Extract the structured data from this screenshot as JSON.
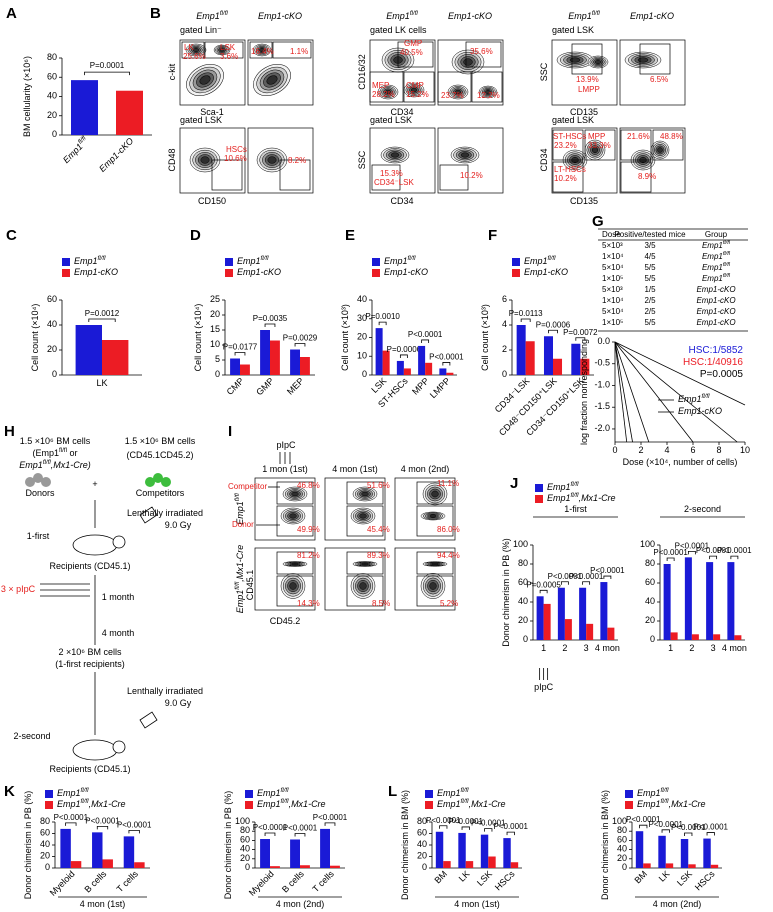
{
  "panel_labels": [
    "A",
    "B",
    "C",
    "D",
    "E",
    "F",
    "G",
    "H",
    "I",
    "J",
    "K",
    "L"
  ],
  "flow_b": {
    "headers": [
      "Emp1fl/fl",
      "Emp1-cKO",
      "Emp1fl/fl",
      "Emp1-cKO",
      "Emp1fl/fl",
      "Emp1-cKO"
    ],
    "gates": [
      "gated Lin⁻",
      "gated LK cells",
      "gated LSK",
      "gated LSK",
      "gated LSK",
      "gated LSK"
    ],
    "axes": [
      "c-kit",
      "Sca-1",
      "CD16/32",
      "CD34",
      "SSC",
      "CD135",
      "CD48",
      "CD150",
      "SSC",
      "CD34",
      "CD34",
      "CD135"
    ],
    "labels": [
      "LK",
      "LSK",
      "25.6%",
      "3.6%",
      "16.4%",
      "1.1%",
      "GMP",
      "40.5%",
      "MEP",
      "28.2%",
      "CMP",
      "15.2%",
      "35.6%",
      "23.7%",
      "12.2%",
      "13.9%",
      "LMPP",
      "6.5%",
      "HSCs",
      "10.6%",
      "8.2%",
      "15.3%",
      "CD34⁻LSK",
      "10.2%",
      "ST-HSCs",
      "MPP",
      "23.2%",
      "33.3%",
      "LT-HSCs",
      "10.2%",
      "21.6%",
      "48.8%",
      "8.9%"
    ]
  },
  "table_g": {
    "header": [
      "Dose",
      "Positive/tested mice",
      "Group"
    ],
    "rows": [
      [
        "5×10³",
        "3/5",
        "Emp1fl/fl"
      ],
      [
        "1×10⁴",
        "4/5",
        "Emp1fl/fl"
      ],
      [
        "5×10⁴",
        "5/5",
        "Emp1fl/fl"
      ],
      [
        "1×10⁵",
        "5/5",
        "Emp1fl/fl"
      ],
      [
        "5×10³",
        "1/5",
        "Emp1-cKO"
      ],
      [
        "1×10⁴",
        "2/5",
        "Emp1-cKO"
      ],
      [
        "5×10⁴",
        "2/5",
        "Emp1-cKO"
      ],
      [
        "1×10⁵",
        "5/5",
        "Emp1-cKO"
      ]
    ]
  },
  "schematic_h": {
    "texts": [
      "1.5 ×10⁶ BM cells",
      "(Emp1fl/fl or",
      "Emp1fl/fl,Mx1-Cre)",
      "1.5 ×10⁶ BM cells",
      "(CD45.1CD45.2)",
      "Donors",
      "+",
      "Competitors",
      "Lenthally irradiated",
      "9.0 Gy",
      "1-first",
      "Recipients (CD45.1)",
      "3 × pIpC",
      "1 month",
      "4 month",
      "2 ×10⁶ BM cells",
      "(1-first recipients)",
      "Lenthally irradiated",
      "9.0 Gy",
      "2-second",
      "Recipients (CD45.1)"
    ]
  },
  "flow_i": {
    "stimulus": "pIpC",
    "columns": [
      "1 mon (1st)",
      "4 mon (1st)",
      "4 mon (2nd)"
    ],
    "rows": [
      "Emp1fl/fl",
      "Emp1fl/fl,Mx1-Cre"
    ],
    "gates": [
      "Competitor",
      "Donor"
    ],
    "axes": [
      "CD45.1",
      "CD45.2"
    ],
    "labels": [
      "46.8%",
      "49.9%",
      "51.6%",
      "45.4%",
      "11.1%",
      "86.0%",
      "81.2%",
      "14.3%",
      "89.3%",
      "8.5%",
      "94.4%",
      "5.2%"
    ]
  },
  "chart_data": [
    {
      "type": "bar",
      "ylabel": "BM cellularity (×10⁶)",
      "ylim": [
        0,
        80
      ],
      "yticks": [
        0,
        20,
        40,
        60,
        80
      ],
      "categories": [
        "Emp1fl/fl",
        "Emp1-cKO"
      ],
      "values": [
        57,
        46
      ],
      "colors": [
        "#1a1ad6",
        "#ec1c24"
      ],
      "pvalues": [
        "P=0.0001"
      ]
    },
    {
      "type": "bar",
      "ylabel": "Cell count (×10⁴)",
      "ylim": [
        0,
        60
      ],
      "yticks": [
        0,
        20,
        40,
        60
      ],
      "categories": [
        "LK"
      ],
      "legend": true,
      "series": [
        {
          "name": "Emp1fl/fl",
          "color": "#1a1ad6",
          "values": [
            40
          ]
        },
        {
          "name": "Emp1-cKO",
          "color": "#ec1c24",
          "values": [
            28
          ]
        }
      ],
      "pvalues": [
        "P=0.0012"
      ]
    },
    {
      "type": "bar",
      "ylabel": "Cell count (×10⁴)",
      "ylim": [
        0,
        25
      ],
      "yticks": [
        0,
        5,
        10,
        15,
        20,
        25
      ],
      "categories": [
        "CMP",
        "GMP",
        "MEP"
      ],
      "legend": true,
      "series": [
        {
          "name": "Emp1fl/fl",
          "color": "#1a1ad6",
          "values": [
            5.5,
            15,
            8.5
          ]
        },
        {
          "name": "Emp1-cKO",
          "color": "#ec1c24",
          "values": [
            3.5,
            11.5,
            6
          ]
        }
      ],
      "pvalues": [
        "P=0.0177",
        "P=0.0035",
        "P=0.0029"
      ]
    },
    {
      "type": "bar",
      "ylabel": "Cell count (×10³)",
      "ylim": [
        0,
        40
      ],
      "yticks": [
        0,
        10,
        20,
        30,
        40
      ],
      "categories": [
        "LSK",
        "ST-HSCs",
        "MPP",
        "LMPP"
      ],
      "legend": true,
      "series": [
        {
          "name": "Emp1fl/fl",
          "color": "#1a1ad6",
          "values": [
            25,
            7.5,
            15.5,
            3.5
          ]
        },
        {
          "name": "Emp1-cKO",
          "color": "#ec1c24",
          "values": [
            13,
            3.5,
            6.5,
            1.2
          ]
        }
      ],
      "pvalues": [
        "P=0.0010",
        "P=0.0006",
        "P<0.0001",
        "P<0.0001"
      ]
    },
    {
      "type": "bar",
      "ylabel": "Cell count (×10³)",
      "ylim": [
        0,
        6
      ],
      "yticks": [
        0,
        2,
        4,
        6
      ],
      "categories": [
        "CD34⁻LSK",
        "CD48⁻CD150⁺LSK",
        "CD34⁻CD150⁺LSK"
      ],
      "legend": true,
      "series": [
        {
          "name": "Emp1fl/fl",
          "color": "#1a1ad6",
          "values": [
            4,
            3.1,
            2.5
          ]
        },
        {
          "name": "Emp1-cKO",
          "color": "#ec1c24",
          "values": [
            2.7,
            1.3,
            1.3
          ]
        }
      ],
      "pvalues": [
        "P=0.0113",
        "P=0.0006",
        "P=0.0072"
      ]
    },
    {
      "type": "line",
      "ylabel": "log fraction nonresponding",
      "xlabel": "Dose (×10⁴, number of cells)",
      "xlim": [
        0,
        10
      ],
      "xticks": [
        0,
        2,
        4,
        6,
        8,
        10
      ],
      "ylim": [
        -2.3,
        0
      ],
      "yticks": [
        {
          "value": 0,
          "label": "0.0"
        },
        -0.5,
        {
          "value": -1,
          "label": "-1.0"
        },
        -1.5,
        {
          "value": -2,
          "label": "-2.0"
        }
      ],
      "annotations": [
        "HSC:1/5852",
        "HSC:1/40916",
        "P=0.0005"
      ],
      "series": [
        {
          "name": "Emp1fl/fl",
          "color": "#1a1ad6",
          "x": [
            0,
            1.35
          ],
          "values": [
            0,
            -2.3
          ]
        },
        {
          "name": "Emp1-cKO",
          "color": "#ec1c24",
          "x": [
            0,
            9.4
          ],
          "values": [
            0,
            -2.3
          ]
        },
        {
          "color": "#1a1ad6",
          "x": [
            0,
            0.9
          ],
          "values": [
            0,
            -2.3
          ]
        },
        {
          "color": "#1a1ad6",
          "x": [
            0,
            2.6
          ],
          "values": [
            0,
            -2.3
          ]
        },
        {
          "color": "#ec1c24",
          "x": [
            0,
            6
          ],
          "values": [
            0,
            -2.3
          ]
        },
        {
          "color": "#ec1c24",
          "x": [
            0,
            10
          ],
          "values": [
            0,
            -1.45
          ]
        }
      ]
    },
    {
      "type": "bar",
      "title": "1-first",
      "annotation": "pIpC",
      "ylabel": "Donor chimerism in PB (%)",
      "ylim": [
        0,
        100
      ],
      "yticks": [
        0,
        20,
        40,
        60,
        80,
        100
      ],
      "categories": [
        "1",
        "2",
        "3",
        "4 mon"
      ],
      "legend": true,
      "series": [
        {
          "name": "Emp1fl/fl",
          "color": "#1a1ad6",
          "values": [
            46,
            55,
            55,
            61
          ]
        },
        {
          "name": "Emp1fl/fl,Mx1-Cre",
          "color": "#ec1c24",
          "values": [
            38,
            22,
            17,
            13
          ]
        }
      ],
      "pvalues": [
        "P=0.0005",
        "P<0.0001",
        "P<0.0001",
        "P<0.0001"
      ]
    },
    {
      "type": "bar",
      "title": "2-second",
      "ylim": [
        0,
        100
      ],
      "yticks": [
        0,
        20,
        40,
        60,
        80,
        100
      ],
      "categories": [
        "1",
        "2",
        "3",
        "4 mon"
      ],
      "series": [
        {
          "color": "#1a1ad6",
          "values": [
            80,
            87,
            82,
            82
          ]
        },
        {
          "color": "#ec1c24",
          "values": [
            8,
            6,
            6,
            5
          ]
        }
      ],
      "pvalues": [
        "P<0.0001",
        "P<0.0001",
        "P<0.0001",
        "P<0.0001"
      ]
    },
    {
      "type": "bar",
      "xlabel": "4 mon (1st)",
      "ylabel": "Donor chimerism in PB (%)",
      "ylim": [
        0,
        80
      ],
      "yticks": [
        0,
        20,
        40,
        60,
        80
      ],
      "categories": [
        "Myeloid",
        "B cells",
        "T cells"
      ],
      "legend": true,
      "series": [
        {
          "name": "Emp1fl/fl",
          "color": "#1a1ad6",
          "values": [
            68,
            62,
            55
          ]
        },
        {
          "name": "Emp1fl/fl,Mx1-Cre",
          "color": "#ec1c24",
          "values": [
            12,
            15,
            10
          ]
        }
      ],
      "pvalues": [
        "P<0.0001",
        "P<0.0001",
        "P<0.0001"
      ]
    },
    {
      "type": "bar",
      "xlabel": "4 mon (2nd)",
      "ylabel": "Donor chimerism in PB (%)",
      "ylim": [
        0,
        100
      ],
      "yticks": [
        0,
        20,
        40,
        60,
        80,
        100
      ],
      "categories": [
        "Myeloid",
        "B cells",
        "T cells"
      ],
      "legend": true,
      "series": [
        {
          "name": "Emp1fl/fl",
          "color": "#1a1ad6",
          "values": [
            63,
            62,
            85
          ]
        },
        {
          "name": "Emp1fl/fl,Mx1-Cre",
          "color": "#ec1c24",
          "values": [
            4,
            6,
            5
          ]
        }
      ],
      "pvalues": [
        "P<0.0001",
        "P<0.0001",
        "P<0.0001"
      ]
    },
    {
      "type": "bar",
      "xlabel": "4 mon (1st)",
      "ylabel": "Donor chimerism in BM (%)",
      "ylim": [
        0,
        80
      ],
      "yticks": [
        0,
        20,
        40,
        60,
        80
      ],
      "categories": [
        "BM",
        "LK",
        "LSK",
        "HSCs"
      ],
      "legend": true,
      "series": [
        {
          "name": "Emp1fl/fl",
          "color": "#1a1ad6",
          "values": [
            63,
            61,
            58,
            52
          ]
        },
        {
          "name": "Emp1fl/fl,Mx1-Cre",
          "color": "#ec1c24",
          "values": [
            12,
            12,
            20,
            10
          ]
        }
      ],
      "pvalues": [
        "P<0.0001",
        "P<0.0001",
        "P<0.0001",
        "P<0.0001"
      ]
    },
    {
      "type": "bar",
      "xlabel": "4 mon (2nd)",
      "ylabel": "Donor chimerism in BM (%)",
      "ylim": [
        0,
        100
      ],
      "yticks": [
        0,
        20,
        40,
        60,
        80,
        100
      ],
      "categories": [
        "BM",
        "LK",
        "LSK",
        "HSCs"
      ],
      "legend": true,
      "series": [
        {
          "name": "Emp1fl/fl",
          "color": "#1a1ad6",
          "values": [
            80,
            70,
            63,
            64
          ]
        },
        {
          "name": "Emp1fl/fl,Mx1-Cre",
          "color": "#ec1c24",
          "values": [
            10,
            10,
            8,
            7
          ]
        }
      ],
      "pvalues": [
        "P<0.0001",
        "P<0.0001",
        "P<0.0001",
        "P<0.0001"
      ]
    }
  ]
}
